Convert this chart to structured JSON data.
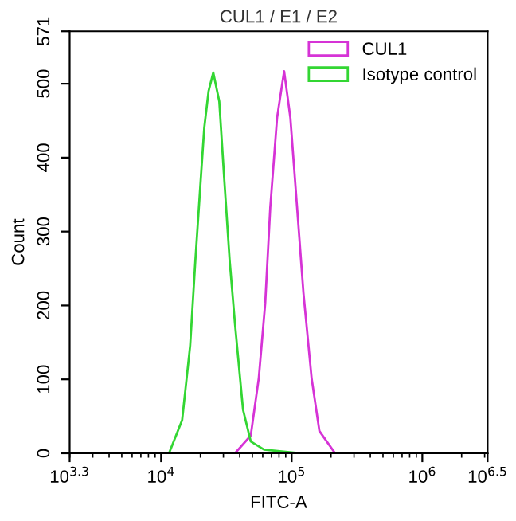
{
  "chart_data": {
    "type": "line",
    "title": "CUL1 / E1 / E2",
    "xlabel": "FITC-A",
    "ylabel": "Count",
    "log": "x",
    "xlim": [
      1995,
      3162000
    ],
    "xticks": [
      {
        "value": 1995,
        "label": "10$^{3.3}$"
      },
      {
        "value": 10000,
        "label": "10$^{4}$"
      },
      {
        "value": 100000,
        "label": "10$^{5}$"
      },
      {
        "value": 1000000,
        "label": "10$^{6}$"
      },
      {
        "value": 3162000,
        "label": "10$^{6.5}$"
      }
    ],
    "ylim": [
      0,
      571
    ],
    "yticks": [
      0,
      100,
      200,
      300,
      400,
      500,
      571
    ],
    "grid": false,
    "legend": "top right",
    "marker": "none",
    "line_style": "solid",
    "series": [
      {
        "name": "CUL1",
        "color": "#d633d6",
        "x": [
          36800,
          48600,
          56000,
          62700,
          68500,
          77300,
          87500,
          97700,
          110000,
          123000,
          142000,
          163000,
          215000
        ],
        "values": [
          0,
          24,
          102,
          203,
          332,
          454,
          517,
          454,
          332,
          217,
          102,
          30,
          0
        ]
      },
      {
        "name": "Isotype control",
        "color": "#33d633",
        "x": [
          11500,
          14500,
          16700,
          18300,
          20100,
          21400,
          23100,
          25100,
          27900,
          30500,
          33500,
          36800,
          42400,
          48600,
          61400,
          117000
        ],
        "values": [
          0,
          45,
          146,
          261,
          369,
          440,
          490,
          515,
          476,
          369,
          261,
          175,
          59,
          16,
          5,
          0
        ]
      }
    ]
  }
}
